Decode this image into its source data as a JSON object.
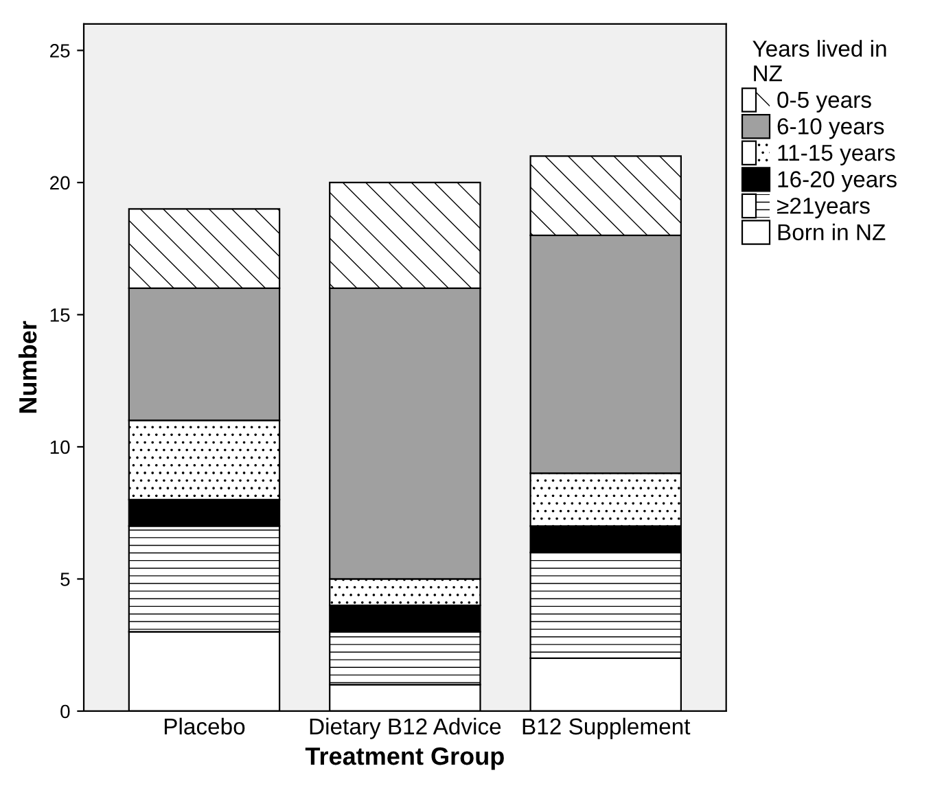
{
  "chart_data": {
    "type": "bar",
    "stacked": true,
    "xlabel": "Treatment Group",
    "ylabel": "Number",
    "legend_title": "Years lived in\nNZ",
    "categories": [
      "Placebo",
      "Dietary B12 Advice",
      "B12 Supplement"
    ],
    "series": [
      {
        "name": "Born in NZ",
        "color": "#ffffff",
        "values": [
          3,
          1,
          2
        ]
      },
      {
        "name": "≥21years",
        "color": "#ffffff",
        "values": [
          4,
          2,
          4
        ]
      },
      {
        "name": "16-20 years",
        "color": "#000000",
        "values": [
          1,
          1,
          1
        ]
      },
      {
        "name": "11-15 years",
        "color": "#ffffff",
        "values": [
          3,
          1,
          2
        ]
      },
      {
        "name": "6-10 years",
        "color": "#a0a0a0",
        "values": [
          5,
          11,
          9
        ]
      },
      {
        "name": "0-5 years",
        "color": "#ffffff",
        "values": [
          3,
          4,
          3
        ]
      }
    ],
    "ylim": [
      0,
      26
    ],
    "yticks": [
      0,
      5,
      10,
      15,
      20,
      25
    ],
    "grid": false,
    "legend": "top right"
  }
}
